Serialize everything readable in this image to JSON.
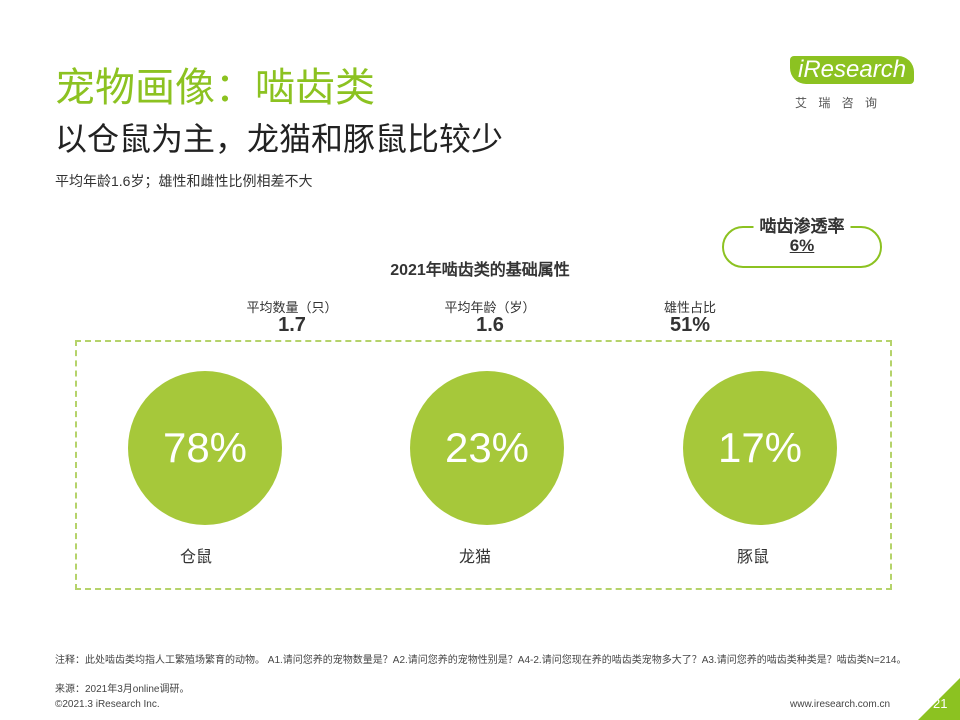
{
  "header": {
    "title": "宠物画像：啮齿类",
    "subtitle": "以仓鼠为主，龙猫和豚鼠比较少",
    "summary": "平均年龄1.6岁；雄性和雌性比例相差不大"
  },
  "logo": {
    "brand": "iResearch",
    "cn": "艾 瑞 咨 询"
  },
  "penetration": {
    "label": "啮齿渗透率",
    "value": "6%"
  },
  "section_title": "2021年啮齿类的基础属性",
  "stats": [
    {
      "label": "平均数量（只）",
      "value": "1.7"
    },
    {
      "label": "平均年龄（岁）",
      "value": "1.6"
    },
    {
      "label": "雄性占比",
      "value": "51%"
    }
  ],
  "items": [
    {
      "value": "78%",
      "label": "仓鼠"
    },
    {
      "value": "23%",
      "label": "龙猫"
    },
    {
      "value": "17%",
      "label": "豚鼠"
    }
  ],
  "footer": {
    "note": "注释：此处啮齿类均指人工繁殖场繁育的动物。 A1.请问您养的宠物数量是？A2.请问您养的宠物性别是？A4-2.请问您现在养的啮齿类宠物多大了？A3.请问您养的啮齿类种类是？啮齿类N=214。",
    "source": "来源：2021年3月online调研。",
    "copyright": "©2021.3 iResearch Inc.",
    "url": "www.iresearch.com.cn",
    "page": "21"
  }
}
